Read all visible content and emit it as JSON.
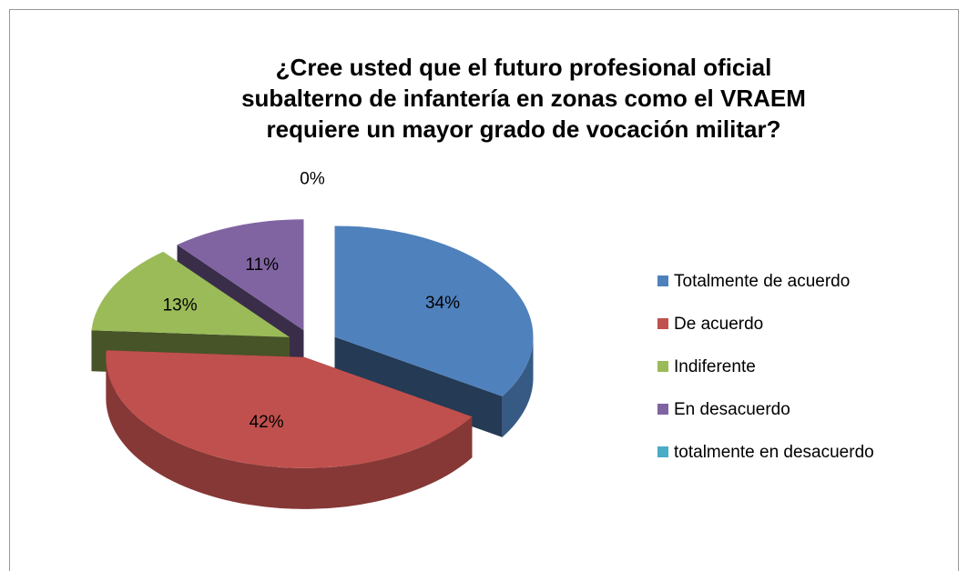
{
  "chart_data": {
    "type": "pie3d",
    "title": [
      "¿Cree usted que el futuro profesional oficial",
      "subalterno de infantería en zonas como el VRAEM",
      "requiere un mayor grado de vocación militar?"
    ],
    "categories": [
      "Totalmente de acuerdo",
      "De acuerdo",
      "Indiferente",
      "En desacuerdo",
      "totalmente en desacuerdo"
    ],
    "values": [
      34,
      42,
      13,
      11,
      0
    ],
    "value_labels": [
      "34%",
      "42%",
      "13%",
      "11%",
      "0%"
    ],
    "colors": [
      "#4f81bd",
      "#c0504d",
      "#9bbb59",
      "#8064a2",
      "#4bacc6"
    ],
    "legend": "right"
  }
}
